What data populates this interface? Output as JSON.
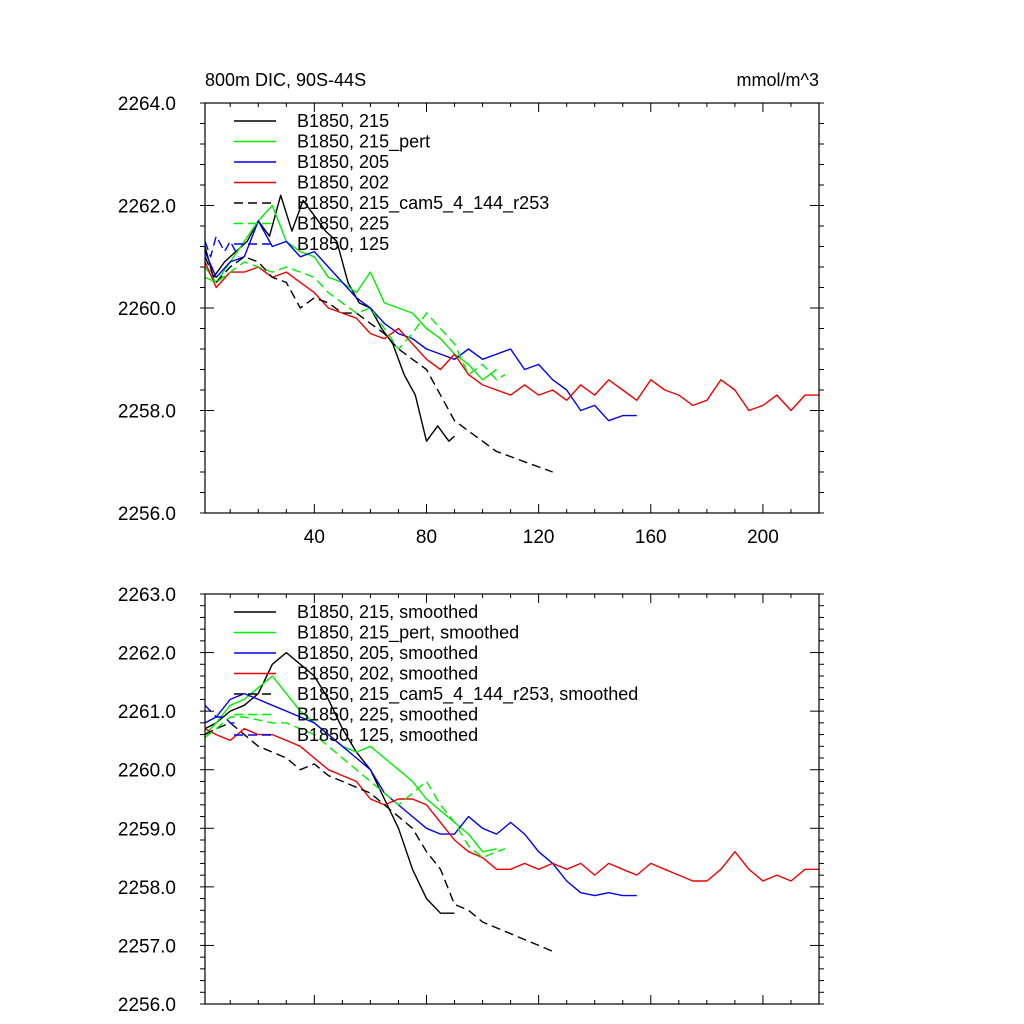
{
  "chart_data": [
    {
      "type": "line",
      "title": "800m DIC, 90S-44S",
      "units": "mmol/m^3",
      "xlabel": "",
      "ylabel": "",
      "xlim": [
        1,
        220
      ],
      "ylim": [
        2256.0,
        2264.0
      ],
      "xticks": [
        40,
        80,
        120,
        160,
        200
      ],
      "yticks": [
        "2256.0",
        "2258.0",
        "2260.0",
        "2262.0",
        "2264.0"
      ],
      "legend_position": "top-left",
      "series": [
        {
          "name": "B1850, 215",
          "color": "#000000",
          "dash": "solid",
          "x": [
            1,
            4,
            8,
            12,
            16,
            20,
            24,
            28,
            32,
            36,
            40,
            44,
            48,
            52,
            56,
            60,
            64,
            68,
            72,
            76,
            80,
            84,
            88,
            90
          ],
          "y": [
            2261.2,
            2260.6,
            2260.9,
            2261.1,
            2261.3,
            2261.7,
            2261.4,
            2262.2,
            2261.5,
            2262.1,
            2261.8,
            2261.5,
            2261.3,
            2260.5,
            2260.1,
            2260.0,
            2259.6,
            2259.3,
            2258.7,
            2258.3,
            2257.4,
            2257.7,
            2257.4,
            2257.5
          ]
        },
        {
          "name": "B1850, 215_pert",
          "color": "#00ee00",
          "dash": "solid",
          "x": [
            1,
            5,
            10,
            15,
            20,
            25,
            30,
            35,
            40,
            45,
            50,
            55,
            60,
            65,
            70,
            75,
            80,
            85,
            90,
            95,
            100,
            105
          ],
          "y": [
            2260.8,
            2260.5,
            2260.9,
            2261.3,
            2261.7,
            2262.0,
            2261.3,
            2261.1,
            2261.0,
            2260.6,
            2260.5,
            2260.3,
            2260.7,
            2260.1,
            2260.0,
            2259.9,
            2259.6,
            2259.4,
            2259.1,
            2258.9,
            2258.6,
            2258.8
          ]
        },
        {
          "name": "B1850, 205",
          "color": "#0000ee",
          "dash": "solid",
          "x": [
            1,
            5,
            10,
            15,
            20,
            25,
            30,
            35,
            40,
            45,
            50,
            55,
            60,
            65,
            70,
            75,
            80,
            85,
            90,
            95,
            100,
            105,
            110,
            115,
            120,
            125,
            130,
            135,
            140,
            145,
            150,
            155
          ],
          "y": [
            2261.1,
            2260.6,
            2260.9,
            2261.0,
            2261.7,
            2261.2,
            2261.3,
            2261.0,
            2261.1,
            2260.8,
            2260.5,
            2260.2,
            2260.0,
            2259.7,
            2259.5,
            2259.4,
            2259.2,
            2259.1,
            2259.0,
            2259.2,
            2259.0,
            2259.1,
            2259.2,
            2258.8,
            2258.9,
            2258.6,
            2258.4,
            2258.0,
            2258.1,
            2257.8,
            2257.9,
            2257.9
          ]
        },
        {
          "name": "B1850, 202",
          "color": "#ee0000",
          "dash": "solid",
          "x": [
            1,
            5,
            10,
            15,
            20,
            25,
            30,
            35,
            40,
            45,
            50,
            55,
            60,
            65,
            70,
            75,
            80,
            85,
            90,
            95,
            100,
            105,
            110,
            115,
            120,
            125,
            130,
            135,
            140,
            145,
            150,
            155,
            160,
            165,
            170,
            175,
            180,
            185,
            190,
            195,
            200,
            205,
            210,
            215,
            220
          ],
          "y": [
            2260.9,
            2260.4,
            2260.7,
            2260.7,
            2260.8,
            2260.6,
            2260.7,
            2260.5,
            2260.3,
            2260.0,
            2259.9,
            2259.8,
            2259.5,
            2259.4,
            2259.6,
            2259.3,
            2259.0,
            2258.8,
            2259.1,
            2258.7,
            2258.5,
            2258.4,
            2258.3,
            2258.5,
            2258.3,
            2258.4,
            2258.2,
            2258.5,
            2258.3,
            2258.6,
            2258.4,
            2258.2,
            2258.6,
            2258.4,
            2258.3,
            2258.1,
            2258.2,
            2258.6,
            2258.4,
            2258.0,
            2258.1,
            2258.3,
            2258.0,
            2258.3,
            2258.3
          ]
        },
        {
          "name": "B1850, 215_cam5_4_144_r253",
          "color": "#000000",
          "dash": "dashed",
          "x": [
            1,
            5,
            10,
            15,
            20,
            25,
            30,
            35,
            40,
            45,
            50,
            55,
            60,
            65,
            70,
            75,
            80,
            85,
            90,
            95,
            100,
            105,
            110,
            115,
            120,
            125
          ],
          "y": [
            2261.0,
            2260.5,
            2260.8,
            2261.0,
            2260.9,
            2260.6,
            2260.5,
            2260.0,
            2260.2,
            2260.1,
            2259.9,
            2259.9,
            2259.7,
            2259.5,
            2259.2,
            2259.0,
            2258.8,
            2258.3,
            2257.8,
            2257.6,
            2257.4,
            2257.2,
            2257.1,
            2257.0,
            2256.9,
            2256.8
          ]
        },
        {
          "name": "B1850, 225",
          "color": "#00ee00",
          "dash": "dashed",
          "x": [
            1,
            5,
            10,
            15,
            20,
            25,
            30,
            35,
            40,
            45,
            50,
            55,
            60,
            65,
            70,
            75,
            80,
            85,
            90,
            95,
            100,
            105,
            108
          ],
          "y": [
            2260.6,
            2260.5,
            2260.7,
            2260.9,
            2260.8,
            2260.7,
            2260.8,
            2260.7,
            2260.6,
            2260.3,
            2260.1,
            2259.9,
            2260.0,
            2259.6,
            2259.2,
            2259.5,
            2259.9,
            2259.6,
            2259.3,
            2258.7,
            2258.9,
            2258.6,
            2258.7
          ]
        },
        {
          "name": "B1850, 125",
          "color": "#0000ee",
          "dash": "dashed",
          "x": [
            1,
            3,
            5,
            8,
            10,
            13
          ],
          "y": [
            2261.3,
            2261.0,
            2261.4,
            2261.1,
            2261.3,
            2261.0
          ]
        }
      ]
    },
    {
      "type": "line",
      "title": "",
      "units": "",
      "xlabel": "",
      "ylabel": "",
      "xlim": [
        1,
        220
      ],
      "ylim": [
        2256.0,
        2263.0
      ],
      "xticks": [
        40,
        80,
        120,
        160,
        200
      ],
      "yticks": [
        "2256.0",
        "2257.0",
        "2258.0",
        "2259.0",
        "2260.0",
        "2261.0",
        "2262.0",
        "2263.0"
      ],
      "legend_position": "top-left",
      "series": [
        {
          "name": "B1850, 215, smoothed",
          "color": "#000000",
          "dash": "solid",
          "x": [
            1,
            5,
            10,
            15,
            20,
            25,
            30,
            35,
            40,
            45,
            50,
            55,
            60,
            65,
            70,
            75,
            80,
            85,
            90
          ],
          "y": [
            2260.7,
            2260.8,
            2261.0,
            2261.1,
            2261.3,
            2261.8,
            2262.0,
            2261.8,
            2261.6,
            2261.2,
            2260.7,
            2260.3,
            2260.0,
            2259.5,
            2259.0,
            2258.3,
            2257.8,
            2257.55,
            2257.55
          ]
        },
        {
          "name": "B1850, 215_pert, smoothed",
          "color": "#00ee00",
          "dash": "solid",
          "x": [
            1,
            5,
            10,
            15,
            20,
            25,
            30,
            35,
            40,
            45,
            50,
            55,
            60,
            65,
            70,
            75,
            80,
            85,
            90,
            95,
            100,
            105
          ],
          "y": [
            2260.6,
            2260.8,
            2261.1,
            2261.2,
            2261.4,
            2261.6,
            2261.3,
            2261.0,
            2260.8,
            2260.6,
            2260.4,
            2260.3,
            2260.4,
            2260.2,
            2260.0,
            2259.8,
            2259.5,
            2259.3,
            2259.1,
            2258.9,
            2258.6,
            2258.65
          ]
        },
        {
          "name": "B1850, 205, smoothed",
          "color": "#0000ee",
          "dash": "solid",
          "x": [
            1,
            5,
            10,
            15,
            20,
            25,
            30,
            35,
            40,
            45,
            50,
            55,
            60,
            65,
            70,
            75,
            80,
            85,
            90,
            95,
            100,
            105,
            110,
            115,
            120,
            125,
            130,
            135,
            140,
            145,
            150,
            155
          ],
          "y": [
            2260.8,
            2260.9,
            2261.2,
            2261.3,
            2261.2,
            2261.1,
            2261.0,
            2260.9,
            2260.8,
            2260.6,
            2260.4,
            2260.2,
            2260.0,
            2259.6,
            2259.4,
            2259.2,
            2259.0,
            2258.9,
            2258.9,
            2259.2,
            2259.0,
            2258.9,
            2259.1,
            2258.9,
            2258.6,
            2258.4,
            2258.1,
            2257.9,
            2257.85,
            2257.9,
            2257.85,
            2257.85
          ]
        },
        {
          "name": "B1850, 202, smoothed",
          "color": "#ee0000",
          "dash": "solid",
          "x": [
            1,
            5,
            10,
            15,
            20,
            25,
            30,
            35,
            40,
            45,
            50,
            55,
            60,
            65,
            70,
            75,
            80,
            85,
            90,
            95,
            100,
            105,
            110,
            115,
            120,
            125,
            130,
            135,
            140,
            145,
            150,
            155,
            160,
            165,
            170,
            175,
            180,
            185,
            190,
            195,
            200,
            205,
            210,
            215,
            220
          ],
          "y": [
            2260.7,
            2260.6,
            2260.5,
            2260.7,
            2260.6,
            2260.6,
            2260.5,
            2260.4,
            2260.2,
            2260.0,
            2259.9,
            2259.8,
            2259.5,
            2259.4,
            2259.5,
            2259.5,
            2259.4,
            2259.1,
            2258.8,
            2258.6,
            2258.5,
            2258.3,
            2258.3,
            2258.4,
            2258.3,
            2258.4,
            2258.3,
            2258.4,
            2258.2,
            2258.4,
            2258.3,
            2258.2,
            2258.4,
            2258.3,
            2258.2,
            2258.1,
            2258.1,
            2258.3,
            2258.6,
            2258.3,
            2258.1,
            2258.2,
            2258.1,
            2258.3,
            2258.3
          ]
        },
        {
          "name": "B1850, 215_cam5_4_144_r253, smoothed",
          "color": "#000000",
          "dash": "dashed",
          "x": [
            1,
            5,
            10,
            15,
            20,
            25,
            30,
            35,
            40,
            45,
            50,
            55,
            60,
            65,
            70,
            75,
            80,
            85,
            90,
            95,
            100,
            105,
            110,
            115,
            120,
            125
          ],
          "y": [
            2260.6,
            2260.7,
            2260.8,
            2260.6,
            2260.4,
            2260.3,
            2260.2,
            2260.0,
            2260.1,
            2259.9,
            2259.8,
            2259.7,
            2259.6,
            2259.4,
            2259.2,
            2259.0,
            2258.6,
            2258.3,
            2257.7,
            2257.6,
            2257.4,
            2257.3,
            2257.2,
            2257.1,
            2257.0,
            2256.9
          ]
        },
        {
          "name": "B1850, 225, smoothed",
          "color": "#00ee00",
          "dash": "dashed",
          "x": [
            1,
            5,
            10,
            15,
            20,
            25,
            30,
            35,
            40,
            45,
            50,
            55,
            60,
            65,
            70,
            75,
            80,
            85,
            90,
            95,
            100,
            105,
            108
          ],
          "y": [
            2260.55,
            2260.7,
            2260.9,
            2260.9,
            2260.85,
            2260.8,
            2260.8,
            2260.7,
            2260.6,
            2260.4,
            2260.2,
            2260.0,
            2259.8,
            2259.6,
            2259.4,
            2259.6,
            2259.8,
            2259.4,
            2259.1,
            2258.7,
            2258.5,
            2258.6,
            2258.65
          ]
        },
        {
          "name": "B1850, 125, smoothed",
          "color": "#0000ee",
          "dash": "dashed",
          "x": [
            1,
            3,
            5,
            8,
            10,
            13
          ],
          "y": [
            2261.1,
            2261.0,
            2260.9,
            2260.9,
            2260.8,
            2260.8
          ]
        }
      ]
    }
  ]
}
